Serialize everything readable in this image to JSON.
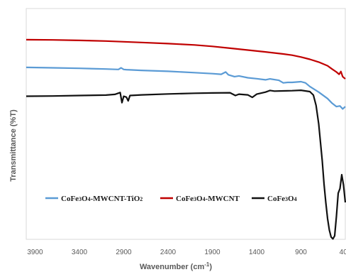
{
  "chart_data": {
    "type": "line",
    "title": "",
    "xlabel": "Wavenumber (cm",
    "xlabel_sup": "-1",
    "xlabel_end": ")",
    "ylabel": "Transmittance  (%T)",
    "xlim": [
      4000,
      400
    ],
    "x_reversed": true,
    "ylim": [
      0,
      100
    ],
    "x_ticks": [
      "3900",
      "3400",
      "2900",
      "2400",
      "1900",
      "1400",
      "900",
      "400"
    ],
    "x_tick_values": [
      3900,
      3400,
      2900,
      2400,
      1900,
      1400,
      900,
      400
    ],
    "grid": false,
    "legend_position": "bottom-inside",
    "series": [
      {
        "name_parts": [
          {
            "t": "CoFe",
            "s": false
          },
          {
            "t": "3",
            "s": true
          },
          {
            "t": "O",
            "s": false
          },
          {
            "t": "4",
            "s": true
          },
          {
            "t": "-MWCNT-TiO",
            "s": false
          },
          {
            "t": "2",
            "s": true
          }
        ],
        "name": "CoFe3O4-MWCNT-TiO2",
        "color": "#5b9bd5",
        "x": [
          4000,
          3700,
          3400,
          3100,
          2960,
          2930,
          2900,
          2870,
          2700,
          2400,
          2100,
          1900,
          1800,
          1750,
          1720,
          1650,
          1600,
          1500,
          1400,
          1300,
          1250,
          1150,
          1100,
          1050,
          1000,
          900,
          850,
          800,
          700,
          600,
          550,
          500,
          460,
          430,
          400
        ],
        "y": [
          74.5,
          74.3,
          74.1,
          73.8,
          73.6,
          74.3,
          73.6,
          73.5,
          73.2,
          72.8,
          72.2,
          71.8,
          71.5,
          72.5,
          71.3,
          70.5,
          70.8,
          70.0,
          69.6,
          69.1,
          69.5,
          68.9,
          67.8,
          68.0,
          68.0,
          68.3,
          67.8,
          66.2,
          63.8,
          61.0,
          59.0,
          57.5,
          57.8,
          56.5,
          57.5
        ]
      },
      {
        "name_parts": [
          {
            "t": "CoFe",
            "s": false
          },
          {
            "t": "3",
            "s": true
          },
          {
            "t": "O",
            "s": false
          },
          {
            "t": "4",
            "s": true
          },
          {
            "t": "-MWCNT",
            "s": false
          }
        ],
        "name": "CoFe3O4-MWCNT",
        "color": "#c00000",
        "x": [
          4000,
          3700,
          3400,
          3100,
          2900,
          2700,
          2400,
          2100,
          1900,
          1700,
          1500,
          1300,
          1100,
          1000,
          900,
          800,
          700,
          600,
          550,
          500,
          470,
          450,
          430,
          400
        ],
        "y": [
          86.5,
          86.4,
          86.2,
          85.9,
          85.6,
          85.3,
          84.8,
          84.2,
          83.6,
          82.8,
          82.0,
          81.2,
          80.3,
          79.8,
          79.0,
          78.0,
          76.8,
          75.2,
          73.8,
          72.5,
          71.5,
          72.7,
          70.5,
          69.5
        ]
      },
      {
        "name_parts": [
          {
            "t": "CoFe",
            "s": false
          },
          {
            "t": "3",
            "s": true
          },
          {
            "t": "O",
            "s": false
          },
          {
            "t": "4",
            "s": true
          }
        ],
        "name": "CoFe3O4",
        "color": "#111111",
        "x": [
          4000,
          3700,
          3400,
          3100,
          3000,
          2940,
          2920,
          2900,
          2870,
          2850,
          2830,
          2700,
          2400,
          2100,
          1900,
          1700,
          1640,
          1600,
          1500,
          1450,
          1400,
          1300,
          1250,
          1200,
          1100,
          1000,
          900,
          800,
          760,
          730,
          700,
          680,
          660,
          640,
          620,
          600,
          580,
          560,
          540,
          520,
          500,
          480,
          460,
          440,
          420,
          400
        ],
        "y": [
          62.0,
          62.1,
          62.3,
          62.5,
          62.8,
          63.6,
          59.2,
          62.0,
          61.6,
          60.0,
          62.3,
          62.6,
          63.0,
          63.3,
          63.4,
          63.5,
          62.3,
          62.9,
          62.6,
          61.5,
          62.9,
          63.8,
          64.5,
          64.2,
          64.3,
          64.4,
          64.6,
          64.0,
          62.5,
          58.0,
          50.0,
          42.0,
          34.0,
          24.0,
          16.0,
          9.0,
          4.0,
          1.0,
          0.2,
          1.5,
          10.0,
          20.0,
          22.0,
          28.0,
          23.5,
          16.0
        ]
      }
    ]
  }
}
